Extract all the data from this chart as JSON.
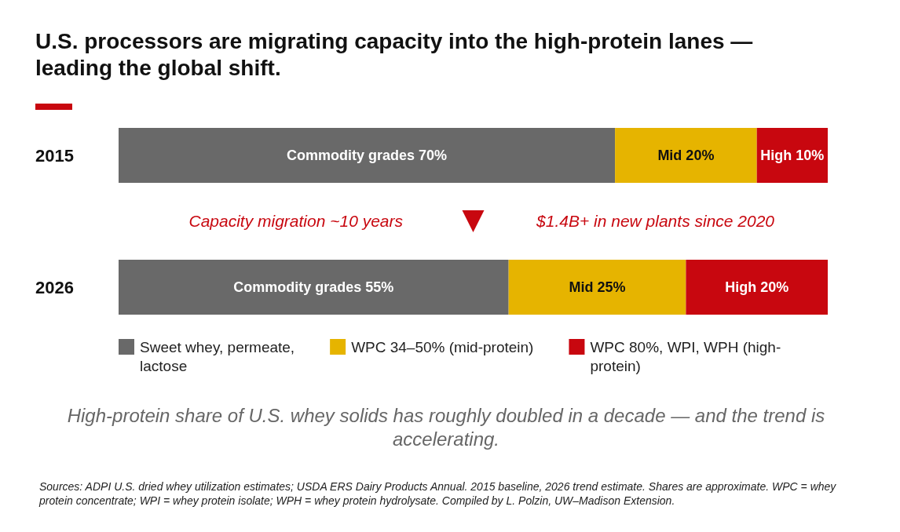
{
  "chart_data": {
    "type": "bar",
    "orientation": "horizontal",
    "stacked": true,
    "title": "U.S. processors are migrating capacity into the high-protein lanes — leading the global shift.",
    "categories": [
      "2015",
      "2026"
    ],
    "series": [
      {
        "name": "Sweet whey, permeate, lactose",
        "color": "#696969",
        "values": [
          70,
          55
        ],
        "value_labels": [
          "Commodity grades 70%",
          "Commodity grades 55%"
        ]
      },
      {
        "name": "WPC 34–50% (mid-protein)",
        "color": "#e6b400",
        "values": [
          20,
          25
        ],
        "value_labels": [
          "Mid 20%",
          "Mid 25%"
        ]
      },
      {
        "name": "WPC 80%, WPI, WPH (high-protein)",
        "color": "#c8070f",
        "values": [
          10,
          20
        ],
        "value_labels": [
          "High 10%",
          "High 20%"
        ]
      }
    ],
    "legend": "bottom",
    "tick_labels": "y",
    "annotations": [
      "Capacity migration ~10 years",
      "$1.4B+ in new plants since 2020",
      "High-protein share of U.S. whey solids has roughly doubled in a decade — and the trend is accelerating.",
      "Sources: ADPI U.S. dried whey utilization estimates; USDA ERS Dairy Products Annual. 2015 baseline, 2026 trend estimate. Shares are approximate. WPC = whey protein concentrate; WPI = whey protein isolate; WPH = whey protein hydrolysate. Compiled by L. Polzin, UW–Madison Extension."
    ]
  }
}
